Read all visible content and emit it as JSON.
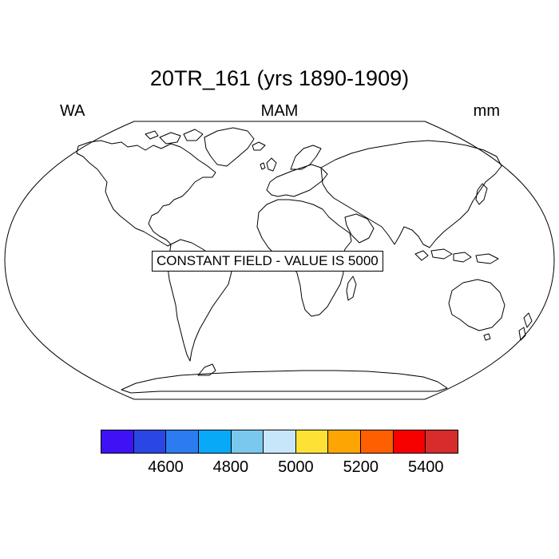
{
  "title": "20TR_161 (yrs 1890-1909)",
  "left_label": "WA",
  "center_label": "MAM",
  "right_label": "mm",
  "notice": "CONSTANT FIELD - VALUE IS 5000",
  "colorbar": {
    "colors": [
      "#3e12f5",
      "#2a47e5",
      "#2b7cf1",
      "#08aaf7",
      "#7ac8ee",
      "#c8e6f9",
      "#fde235",
      "#fda502",
      "#fd5f01",
      "#f60000",
      "#d62c2c"
    ],
    "tick_labels": [
      "4600",
      "4800",
      "5000",
      "5200",
      "5400"
    ]
  }
}
